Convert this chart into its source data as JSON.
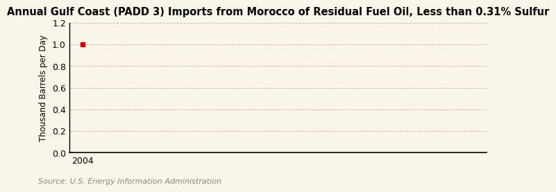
{
  "title": "Annual Gulf Coast (PADD 3) Imports from Morocco of Residual Fuel Oil, Less than 0.31% Sulfur",
  "ylabel": "Thousand Barrels per Day",
  "source": "Source: U.S. Energy Information Administration",
  "x_data": [
    2004
  ],
  "y_data": [
    1.0
  ],
  "marker_color": "#cc0000",
  "marker_style": "s",
  "marker_size": 4,
  "xlim": [
    2003.7,
    2013.0
  ],
  "ylim": [
    0.0,
    1.2
  ],
  "yticks": [
    0.0,
    0.2,
    0.4,
    0.6,
    0.8,
    1.0,
    1.2
  ],
  "xticks": [
    2004
  ],
  "background_color": "#faf5e8",
  "grid_color": "#c8c0a8",
  "title_fontsize": 10.5,
  "label_fontsize": 8.5,
  "tick_fontsize": 9,
  "source_fontsize": 8
}
